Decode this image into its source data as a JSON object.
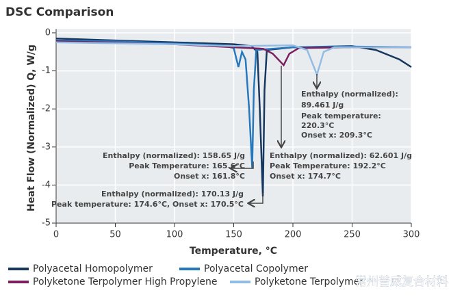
{
  "chart_data": {
    "type": "line",
    "title": "DSC Comparison",
    "x_label": "Temperature, °C",
    "y_label": "Heat Flow (Normalized) Q, W/g",
    "xlim": [
      0,
      300
    ],
    "xticks": [
      0,
      50,
      100,
      150,
      200,
      250,
      300
    ],
    "ylim": [
      -5,
      0.1
    ],
    "yticks": [
      0,
      -1,
      -2,
      -3,
      -4,
      -5
    ],
    "series": [
      {
        "name": "Polyacetal Homopolymer",
        "color": "#17375e",
        "x": [
          0,
          50,
          100,
          150,
          165,
          170,
          172,
          174.6,
          176,
          178,
          200,
          250,
          270,
          290,
          300
        ],
        "values": [
          -0.15,
          -0.2,
          -0.25,
          -0.3,
          -0.35,
          -0.5,
          -2,
          -4.3,
          -1.5,
          -0.45,
          -0.38,
          -0.35,
          -0.45,
          -0.7,
          -0.9
        ]
      },
      {
        "name": "Polyacetal Copolymer",
        "color": "#2678bd",
        "x": [
          0,
          50,
          100,
          140,
          150,
          154,
          157,
          160,
          163,
          165.6,
          167,
          169,
          200,
          250,
          300
        ],
        "values": [
          -0.2,
          -0.22,
          -0.28,
          -0.33,
          -0.4,
          -0.9,
          -0.5,
          -0.7,
          -2,
          -3.55,
          -1.5,
          -0.45,
          -0.38,
          -0.36,
          -0.38
        ]
      },
      {
        "name": "Polyketone Terpolymer High Propylene",
        "color": "#7b1f5e",
        "x": [
          0,
          100,
          150,
          175,
          183,
          192.2,
          197,
          205,
          250,
          300
        ],
        "values": [
          -0.22,
          -0.3,
          -0.38,
          -0.42,
          -0.55,
          -0.85,
          -0.55,
          -0.4,
          -0.38,
          -0.38
        ]
      },
      {
        "name": "Polyketone Terpolymer",
        "color": "#92bce4",
        "x": [
          0,
          100,
          150,
          200,
          212,
          220.3,
          226,
          235,
          300
        ],
        "values": [
          -0.25,
          -0.3,
          -0.35,
          -0.33,
          -0.45,
          -1.1,
          -0.5,
          -0.38,
          -0.38
        ]
      }
    ],
    "annotations": [
      [
        "Enthalpy (normalized):",
        "89.461 J/g",
        "Peak temperature:",
        "220.3°C",
        "Onset x: 209.3°C"
      ],
      [
        "Enthalpy (normalized): 62.601 J/g",
        "Peak Temperature: 192.2°C",
        "Onset x: 174.7°C"
      ],
      [
        "Enthalpy (normalized): 158.65 J/g",
        "Peak Temperature: 165.6°C",
        "Onset x: 161.8°C"
      ],
      [
        "Enthalpy (normalized): 170.13 J/g",
        "Peak temperature: 174.6°C, Onset x: 170.5°C"
      ]
    ],
    "watermark": "常州普威复合材料"
  }
}
